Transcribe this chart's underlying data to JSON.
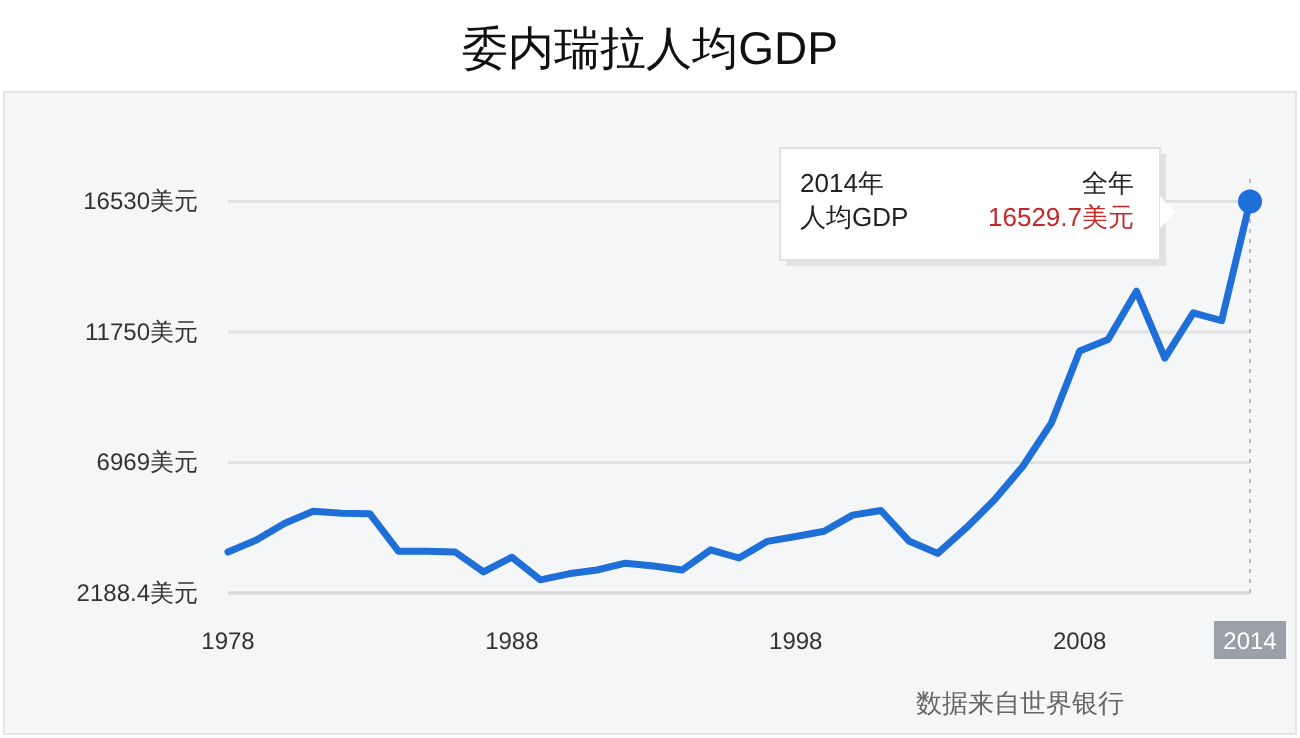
{
  "chart_data": {
    "type": "line",
    "title": "委内瑞拉人均GDP",
    "x": [
      1978,
      1979,
      1980,
      1981,
      1982,
      1983,
      1984,
      1985,
      1986,
      1987,
      1988,
      1989,
      1990,
      1991,
      1992,
      1993,
      1994,
      1995,
      1996,
      1997,
      1998,
      1999,
      2000,
      2001,
      2002,
      2003,
      2004,
      2005,
      2006,
      2007,
      2008,
      2009,
      2010,
      2011,
      2012,
      2013,
      2014
    ],
    "series": [
      {
        "color": "#1f6fd9",
        "values": [
          3690,
          4130,
          4740,
          5180,
          5110,
          5090,
          3720,
          3720,
          3690,
          2960,
          3500,
          2670,
          2890,
          3030,
          3280,
          3180,
          3030,
          3770,
          3470,
          4080,
          4260,
          4450,
          5040,
          5210,
          4080,
          3640,
          4570,
          5600,
          6830,
          8410,
          11050,
          11470,
          13240,
          10790,
          12450,
          12160,
          16529.7
        ]
      }
    ],
    "xlim": [
      1978,
      2014
    ],
    "xticks": [
      1978,
      1988,
      1998,
      2008,
      2014
    ],
    "ylim": [
      2188.4,
      16530
    ],
    "yticks": [
      {
        "value": 2188.4,
        "label": "2188.4美元"
      },
      {
        "value": 6969,
        "label": "6969美元"
      },
      {
        "value": 11750,
        "label": "11750美元"
      },
      {
        "value": 16530,
        "label": "16530美元"
      }
    ],
    "grid": "y",
    "marker": "none",
    "line_style": "solid",
    "ref_lines": [
      {
        "axis": "x",
        "value": 2014,
        "line_style": "dotted",
        "color": "#bbbbbb"
      }
    ],
    "annotations": [
      "2014年",
      "全年",
      "人均GDP",
      "16529.7美元",
      "数据来自世界银行"
    ]
  }
}
